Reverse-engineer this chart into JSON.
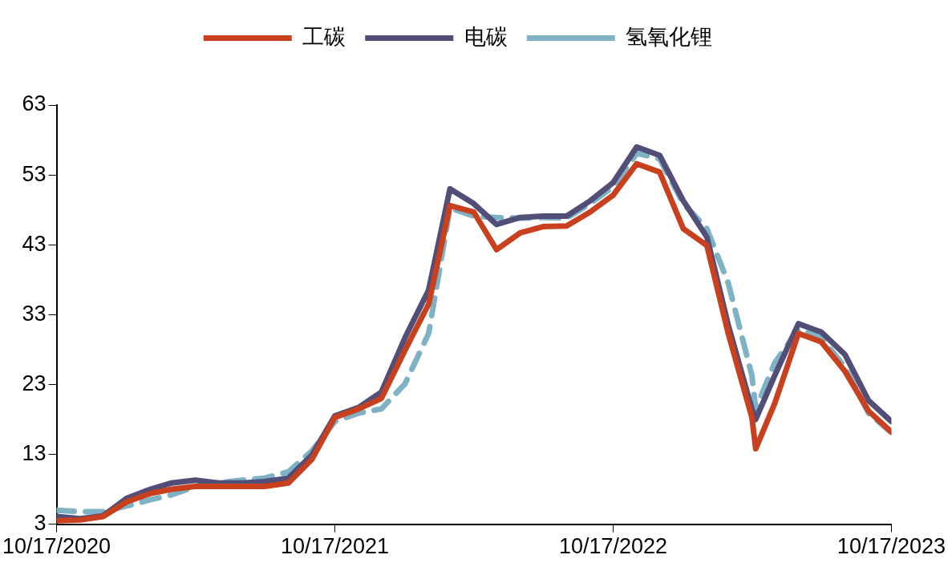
{
  "chart_data": {
    "type": "line",
    "legend": "top",
    "grid": false,
    "marker": "none",
    "x": [
      "2020-10-17",
      "2020-11-17",
      "2020-12-17",
      "2021-01-17",
      "2021-02-17",
      "2021-03-17",
      "2021-04-17",
      "2021-05-17",
      "2021-06-17",
      "2021-07-17",
      "2021-08-17",
      "2021-09-17",
      "2021-10-17",
      "2021-11-17",
      "2021-12-17",
      "2022-01-17",
      "2022-02-17",
      "2022-03-17",
      "2022-04-17",
      "2022-05-17",
      "2022-06-17",
      "2022-07-17",
      "2022-08-17",
      "2022-09-17",
      "2022-10-17",
      "2022-11-17",
      "2022-12-17",
      "2023-01-17",
      "2023-02-17",
      "2023-03-17",
      "2023-04-17",
      "2023-04-22",
      "2023-05-17",
      "2023-06-17",
      "2023-07-17",
      "2023-08-17",
      "2023-09-17",
      "2023-10-17"
    ],
    "xlim": [
      "2020-10-17",
      "2023-10-17"
    ],
    "xticks": [
      {
        "value": "2020-10-17",
        "label": "10/17/2020"
      },
      {
        "value": "2021-10-17",
        "label": "10/17/2021"
      },
      {
        "value": "2022-10-17",
        "label": "10/17/2022"
      },
      {
        "value": "2023-10-17",
        "label": "10/17/2023"
      }
    ],
    "ylim": [
      3,
      63
    ],
    "yticks": [
      3,
      13,
      23,
      33,
      43,
      53,
      63
    ],
    "series": [
      {
        "name": "工碳",
        "color": "#c8401e",
        "line_style": "solid",
        "values": [
          3.5,
          3.6,
          4.1,
          6.2,
          7.4,
          8,
          8.4,
          8.4,
          8.4,
          8.4,
          8.9,
          12.3,
          18.3,
          19.5,
          21,
          27.9,
          34.5,
          48.6,
          47.7,
          42.3,
          44.7,
          45.6,
          45.7,
          47.7,
          50.1,
          54.6,
          53.4,
          45.3,
          42.9,
          30.3,
          18.3,
          13.8,
          20.3,
          30.3,
          29.1,
          24.9,
          19.2,
          16.2
        ]
      },
      {
        "name": "电碳",
        "color": "#514e78",
        "line_style": "solid",
        "values": [
          4.1,
          3.8,
          4.2,
          6.7,
          8,
          8.9,
          9.3,
          8.9,
          8.9,
          9.1,
          9.6,
          12.9,
          18.5,
          19.7,
          21.9,
          29.7,
          36.5,
          51,
          48.9,
          45.9,
          46.9,
          47.1,
          47.1,
          49.3,
          51.9,
          57,
          55.8,
          49.3,
          44.1,
          31.5,
          19.5,
          18,
          24.3,
          31.7,
          30.5,
          27.3,
          20.7,
          17.7
        ]
      },
      {
        "name": "氢氧化锂",
        "color": "#7fb2c5",
        "line_style": "dashed",
        "values": [
          5,
          4.8,
          4.8,
          5.6,
          6.5,
          7.2,
          8.4,
          8.9,
          9.3,
          9.6,
          10.5,
          13.5,
          17.7,
          18.9,
          19.5,
          23.1,
          30.3,
          48.3,
          47.1,
          46.9,
          46.8,
          46.9,
          46.8,
          48.9,
          51.3,
          56.1,
          55.3,
          48.9,
          45.3,
          37.5,
          24.3,
          19.5,
          26.1,
          30.9,
          29.7,
          25.5,
          18.9,
          16.1
        ]
      }
    ]
  }
}
